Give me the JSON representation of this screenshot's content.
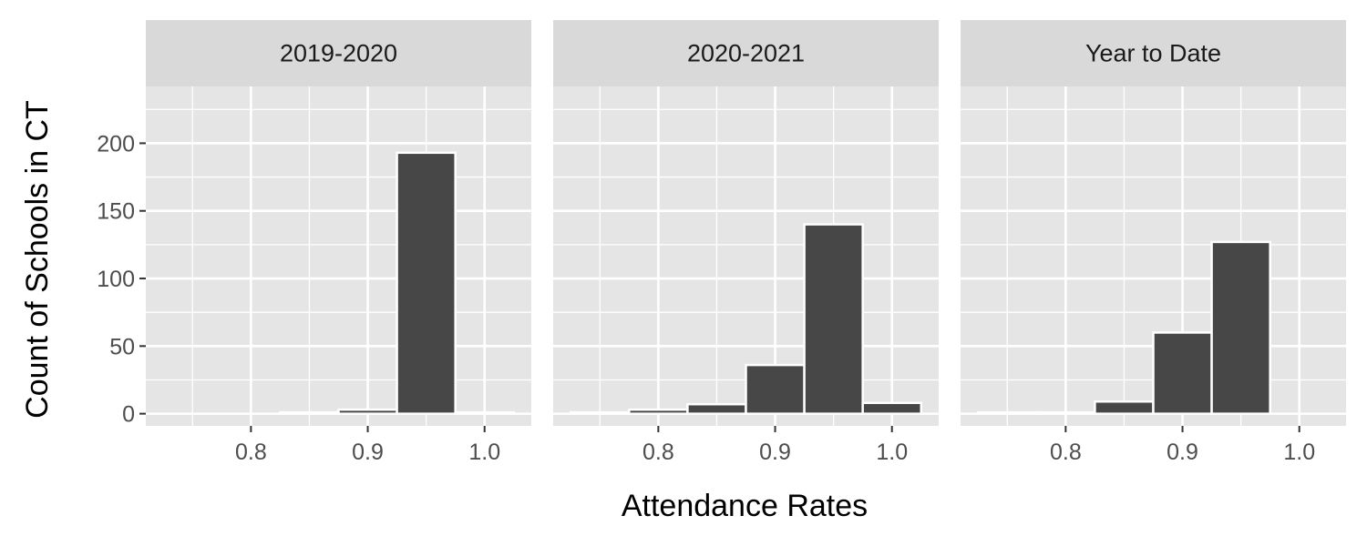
{
  "chart_data": {
    "type": "bar",
    "xlabel": "Attendance Rates",
    "ylabel": "Count of Schools in CT",
    "xlim": [
      0.71,
      1.04
    ],
    "ylim": [
      -9,
      242
    ],
    "x_ticks": [
      "0.8",
      "0.9",
      "1.0"
    ],
    "x_tick_values": [
      0.8,
      0.9,
      1.0
    ],
    "y_ticks": [
      "0",
      "50",
      "100",
      "150",
      "200"
    ],
    "y_tick_values": [
      0,
      50,
      100,
      150,
      200
    ],
    "grid": true,
    "bin_width": 0.05,
    "bin_centers": [
      0.75,
      0.8,
      0.85,
      0.9,
      0.95,
      1.0
    ],
    "panels": [
      {
        "name": "2019-2020",
        "values": [
          0,
          0,
          1,
          3,
          193,
          1
        ]
      },
      {
        "name": "2020-2021",
        "values": [
          1,
          3,
          7,
          36,
          140,
          8
        ]
      },
      {
        "name": "Year to Date",
        "values": [
          1,
          1,
          9,
          60,
          127,
          0
        ]
      }
    ],
    "colors": {
      "bar": "#474747",
      "bar_outline": "#ffffff",
      "panel_bg": "#e5e5e5",
      "strip_bg": "#d9d9d9",
      "grid": "#ffffff"
    }
  }
}
